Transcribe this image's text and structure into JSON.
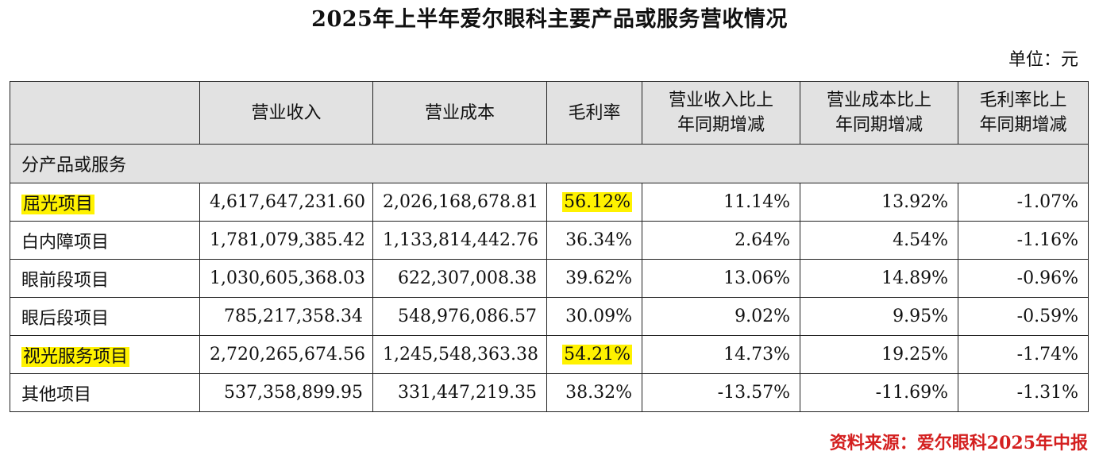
{
  "title": "2025年上半年爱尔眼科主要产品或服务营收情况",
  "unit": "单位：元",
  "headers": [
    "",
    "营业收入",
    "营业成本",
    "毛利率",
    "营业收入比上\n年同期增减",
    "营业成本比上\n年同期增减",
    "毛利率比上\n年同期增减"
  ],
  "section_label": "分产品或服务",
  "rows": [
    [
      "屈光项目",
      "4,617,647,231.60",
      "2,026,168,678.81",
      "56.12%",
      "11.14%",
      "13.92%",
      "-1.07%"
    ],
    [
      "白内障项目",
      "1,781,079,385.42",
      "1,133,814,442.76",
      "36.34%",
      "2.64%",
      "4.54%",
      "-1.16%"
    ],
    [
      "眼前段项目",
      "1,030,605,368.03",
      "622,307,008.38",
      "39.62%",
      "13.06%",
      "14.89%",
      "-0.96%"
    ],
    [
      "眼后段项目",
      "785,217,358.34",
      "548,976,086.57",
      "30.09%",
      "9.02%",
      "9.95%",
      "-0.59%"
    ],
    [
      "视光服务项目",
      "2,720,265,674.56",
      "1,245,548,363.38",
      "54.21%",
      "14.73%",
      "19.25%",
      "-1.74%"
    ],
    [
      "其他项目",
      "537,358,899.95",
      "331,447,219.35",
      "38.32%",
      "-13.57%",
      "-11.69%",
      "-1.31%"
    ]
  ],
  "highlight_color": "#fff200",
  "source": "资料来源：爱尔眼科2025年中报",
  "source_color": "#d42020"
}
